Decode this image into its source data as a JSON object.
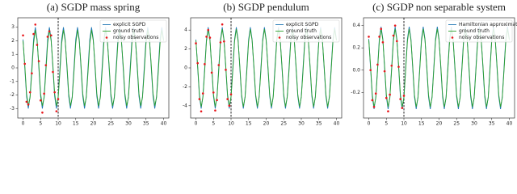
{
  "chart_data": [
    {
      "type": "line",
      "title": "(a) SGDP mass spring",
      "xlim": [
        -1.5,
        41.5
      ],
      "xticks": [
        0,
        5,
        10,
        15,
        20,
        25,
        30,
        35,
        40
      ],
      "ylim": [
        -3.7,
        3.7
      ],
      "yticks": [
        -3,
        -2,
        -1,
        0,
        1,
        2,
        3
      ],
      "vline": 10,
      "legend": "upper right",
      "x": [
        0,
        0.5,
        1,
        1.5,
        2,
        2.5,
        3,
        3.5,
        4,
        4.5,
        5,
        5.5,
        6,
        6.5,
        7,
        7.5,
        8,
        8.5,
        9,
        9.5,
        10,
        10.5,
        11,
        11.5,
        12,
        12.5,
        13,
        13.5,
        14,
        14.5,
        15,
        15.5,
        16,
        16.5,
        17,
        17.5,
        18,
        18.5,
        19,
        19.5,
        20,
        20.5,
        21,
        21.5,
        22,
        22.5,
        23,
        23.5,
        24,
        24.5,
        25,
        25.5,
        26,
        26.5,
        27,
        27.5,
        28,
        28.5,
        29,
        29.5,
        30,
        30.5,
        31,
        31.5,
        32,
        32.5,
        33,
        33.5,
        34,
        34.5,
        35,
        35.5,
        36,
        36.5,
        37,
        37.5,
        38,
        38.5,
        39,
        39.5,
        40
      ],
      "series": [
        {
          "name": "explicit SGPD",
          "color": "#1f77b4",
          "values": [
            2.1,
            0,
            -2.1,
            -3,
            -2.1,
            0,
            2.1,
            3,
            2.1,
            0,
            -2.1,
            -3,
            -2.1,
            0,
            2.1,
            3,
            2.1,
            0,
            -2.1,
            -3,
            -2.1,
            0,
            2.1,
            3,
            2.1,
            0,
            -2.1,
            -3,
            -2.1,
            0,
            2.1,
            3,
            2.1,
            0,
            -2.1,
            -3,
            -2.1,
            0,
            2.1,
            3,
            2.1,
            0,
            -2.1,
            -3,
            -2.1,
            0,
            2.1,
            3,
            2.1,
            0,
            -2.1,
            -3,
            -2.1,
            0,
            2.1,
            3,
            2.1,
            0,
            -2.1,
            -3,
            -2.1,
            0,
            2.1,
            3,
            2.1,
            0,
            -2.1,
            -3,
            -2.1,
            0,
            2.1,
            3,
            2.1,
            0,
            -2.1,
            -3,
            -2.1,
            0,
            2.1,
            3,
            2.1
          ]
        },
        {
          "name": "ground truth",
          "color": "#2ca02c",
          "values": [
            2.0,
            0.2,
            -1.9,
            -2.8,
            -2.2,
            -0.3,
            1.8,
            2.8,
            2.0,
            0.2,
            -1.9,
            -2.8,
            -2.2,
            -0.3,
            1.8,
            2.8,
            2.0,
            0.2,
            -1.9,
            -2.8,
            -2.2,
            -0.3,
            1.8,
            2.8,
            2.0,
            0.2,
            -1.9,
            -2.8,
            -2.2,
            -0.3,
            1.8,
            2.8,
            2.0,
            0.2,
            -1.9,
            -2.8,
            -2.2,
            -0.3,
            1.8,
            2.8,
            2.0,
            0.2,
            -1.9,
            -2.8,
            -2.2,
            -0.3,
            1.8,
            2.8,
            2.0,
            0.2,
            -1.9,
            -2.8,
            -2.2,
            -0.3,
            1.8,
            2.8,
            2.0,
            0.2,
            -1.9,
            -2.8,
            -2.2,
            -0.3,
            1.8,
            2.8,
            2.0,
            0.2,
            -1.9,
            -2.8,
            -2.2,
            -0.3,
            1.8,
            2.8,
            2.0,
            0.2,
            -1.9,
            -2.8,
            -2.2,
            -0.3,
            1.8,
            2.8,
            2.0
          ]
        },
        {
          "name": "noisy observations",
          "color": "#e8161b",
          "type": "scatter",
          "x": [
            0,
            0.5,
            1,
            1.5,
            2,
            2.5,
            3,
            3.5,
            4,
            4.5,
            5,
            5.5,
            6,
            6.5,
            7,
            7.5,
            8,
            8.5,
            9,
            9.5,
            10
          ],
          "values": [
            2.4,
            0.3,
            -2.5,
            -2.7,
            -1.8,
            -0.4,
            2.5,
            3.2,
            1.7,
            0.5,
            -2.4,
            -3.3,
            -1.9,
            0.2,
            2.3,
            2.7,
            2.4,
            -0.3,
            -1.8,
            -3.2,
            -2.3
          ]
        }
      ]
    },
    {
      "type": "line",
      "title": "(b) SGDP pendulum",
      "xlim": [
        -1.5,
        41.5
      ],
      "xticks": [
        0,
        5,
        10,
        15,
        20,
        25,
        30,
        35,
        40
      ],
      "ylim": [
        -5.3,
        5.3
      ],
      "yticks": [
        -4,
        -2,
        0,
        2,
        4
      ],
      "vline": 10,
      "legend": "upper right",
      "x": [
        0,
        0.5,
        1,
        1.5,
        2,
        2.5,
        3,
        3.5,
        4,
        4.5,
        5,
        5.5,
        6,
        6.5,
        7,
        7.5,
        8,
        8.5,
        9,
        9.5,
        10,
        10.5,
        11,
        11.5,
        12,
        12.5,
        13,
        13.5,
        14,
        14.5,
        15,
        15.5,
        16,
        16.5,
        17,
        17.5,
        18,
        18.5,
        19,
        19.5,
        20,
        20.5,
        21,
        21.5,
        22,
        22.5,
        23,
        23.5,
        24,
        24.5,
        25,
        25.5,
        26,
        26.5,
        27,
        27.5,
        28,
        28.5,
        29,
        29.5,
        30,
        30.5,
        31,
        31.5,
        32,
        32.5,
        33,
        33.5,
        34,
        34.5,
        35,
        35.5,
        36,
        36.5,
        37,
        37.5,
        38,
        38.5,
        39,
        39.5,
        40
      ],
      "series": [
        {
          "name": "explicit SGPD",
          "color": "#1f77b4",
          "values": [
            3,
            0,
            -3,
            -4.3,
            -3,
            0,
            3,
            4.3,
            3,
            0,
            -3,
            -4.3,
            -3,
            0,
            3,
            4.3,
            3,
            0,
            -3,
            -4.3,
            -3,
            0,
            3,
            4.3,
            3,
            0,
            -3,
            -4.3,
            -3,
            0,
            3,
            4.3,
            3,
            0,
            -3,
            -4.3,
            -3,
            0,
            3,
            4.3,
            3,
            0,
            -3,
            -4.3,
            -3,
            0,
            3,
            4.3,
            3,
            0,
            -3,
            -4.3,
            -3,
            0,
            3,
            4.3,
            3,
            0,
            -3,
            -4.3,
            -3,
            0,
            3,
            4.3,
            3,
            0,
            -3,
            -4.3,
            -3,
            0,
            3,
            4.3,
            3,
            0,
            -3,
            -4.3,
            -3,
            0,
            3,
            4.3,
            3
          ]
        },
        {
          "name": "ground truth",
          "color": "#2ca02c",
          "values": [
            2.9,
            0.2,
            -2.8,
            -4.1,
            -3.1,
            -0.3,
            2.8,
            4.1,
            2.9,
            0.2,
            -2.8,
            -4.1,
            -3.1,
            -0.3,
            2.8,
            4.1,
            2.9,
            0.2,
            -2.8,
            -4.1,
            -3.1,
            -0.3,
            2.8,
            4.1,
            2.9,
            0.2,
            -2.8,
            -4.1,
            -3.1,
            -0.3,
            2.8,
            4.1,
            2.9,
            0.2,
            -2.8,
            -4.1,
            -3.1,
            -0.3,
            2.8,
            4.1,
            2.9,
            0.2,
            -2.8,
            -4.1,
            -3.1,
            -0.3,
            2.8,
            4.1,
            2.9,
            0.2,
            -2.8,
            -4.1,
            -3.1,
            -0.3,
            2.8,
            4.1,
            2.9,
            0.2,
            -2.8,
            -4.1,
            -3.1,
            -0.3,
            2.8,
            4.1,
            2.9,
            0.2,
            -2.8,
            -4.1,
            -3.1,
            -0.3,
            2.8,
            4.1,
            2.9,
            0.2,
            -2.8,
            -4.1,
            -3.1,
            -0.3,
            2.8,
            4.1,
            2.9
          ]
        },
        {
          "name": "noisy observations",
          "color": "#e8161b",
          "type": "scatter",
          "x": [
            0,
            0.5,
            1,
            1.5,
            2,
            2.5,
            3,
            3.5,
            4,
            4.5,
            5,
            5.5,
            6,
            6.5,
            7,
            7.5,
            8,
            8.5,
            9,
            9.5,
            10
          ],
          "values": [
            2.6,
            0.5,
            -3.3,
            -4.6,
            -2.7,
            0.4,
            3.3,
            4.0,
            3.2,
            -0.5,
            -2.6,
            -4.5,
            -3.4,
            0.3,
            2.7,
            4.6,
            2.8,
            -0.2,
            -3.3,
            -4.0,
            -2.8
          ]
        }
      ]
    },
    {
      "type": "line",
      "title": "(c) SGDP non separable system",
      "xlim": [
        -1.5,
        41.5
      ],
      "xticks": [
        0,
        5,
        10,
        15,
        20,
        25,
        30,
        35,
        40
      ],
      "ylim": [
        -0.43,
        0.47
      ],
      "yticks": [
        -0.2,
        {
          "value": 0,
          "label": "0.0"
        },
        0.2,
        0.4
      ],
      "vline": 10,
      "legend": "upper right",
      "x": [
        0,
        0.5,
        1,
        1.5,
        2,
        2.5,
        3,
        3.5,
        4,
        4.5,
        5,
        5.5,
        6,
        6.5,
        7,
        7.5,
        8,
        8.5,
        9,
        9.5,
        10,
        10.5,
        11,
        11.5,
        12,
        12.5,
        13,
        13.5,
        14,
        14.5,
        15,
        15.5,
        16,
        16.5,
        17,
        17.5,
        18,
        18.5,
        19,
        19.5,
        20,
        20.5,
        21,
        21.5,
        22,
        22.5,
        23,
        23.5,
        24,
        24.5,
        25,
        25.5,
        26,
        26.5,
        27,
        27.5,
        28,
        28.5,
        29,
        29.5,
        30,
        30.5,
        31,
        31.5,
        32,
        32.5,
        33,
        33.5,
        34,
        34.5,
        35,
        35.5,
        36,
        36.5,
        37,
        37.5,
        38,
        38.5,
        39,
        39.5,
        40
      ],
      "series": [
        {
          "name": "Hamiltonian approximation",
          "color": "#1f77b4",
          "values": [
            0.28,
            0.02,
            -0.24,
            -0.35,
            -0.24,
            0.02,
            0.28,
            0.39,
            0.28,
            0.02,
            -0.24,
            -0.35,
            -0.24,
            0.02,
            0.28,
            0.39,
            0.28,
            0.02,
            -0.24,
            -0.35,
            -0.24,
            0.02,
            0.28,
            0.39,
            0.28,
            0.02,
            -0.24,
            -0.35,
            -0.24,
            0.02,
            0.28,
            0.39,
            0.28,
            0.02,
            -0.24,
            -0.35,
            -0.24,
            0.02,
            0.28,
            0.39,
            0.28,
            0.02,
            -0.24,
            -0.35,
            -0.24,
            0.02,
            0.28,
            0.39,
            0.28,
            0.02,
            -0.24,
            -0.35,
            -0.24,
            0.02,
            0.28,
            0.39,
            0.28,
            0.02,
            -0.24,
            -0.35,
            -0.24,
            0.02,
            0.28,
            0.39,
            0.28,
            0.02,
            -0.24,
            -0.35,
            -0.24,
            0.02,
            0.28,
            0.39,
            0.28,
            0.02,
            -0.24,
            -0.35,
            -0.24,
            0.02,
            0.28,
            0.39,
            0.28
          ]
        },
        {
          "name": "ground truth",
          "color": "#2ca02c",
          "values": [
            0.27,
            0.04,
            -0.22,
            -0.33,
            -0.25,
            0,
            0.26,
            0.37,
            0.27,
            0.04,
            -0.22,
            -0.33,
            -0.25,
            0,
            0.26,
            0.37,
            0.27,
            0.04,
            -0.22,
            -0.33,
            -0.25,
            0,
            0.26,
            0.37,
            0.27,
            0.04,
            -0.22,
            -0.33,
            -0.25,
            0,
            0.26,
            0.37,
            0.27,
            0.04,
            -0.22,
            -0.33,
            -0.25,
            0,
            0.26,
            0.37,
            0.27,
            0.04,
            -0.22,
            -0.33,
            -0.25,
            0,
            0.26,
            0.37,
            0.27,
            0.04,
            -0.22,
            -0.33,
            -0.25,
            0,
            0.26,
            0.37,
            0.27,
            0.04,
            -0.22,
            -0.33,
            -0.25,
            0,
            0.26,
            0.37,
            0.27,
            0.04,
            -0.22,
            -0.33,
            -0.25,
            0,
            0.26,
            0.37,
            0.27,
            0.04,
            -0.22,
            -0.33,
            -0.25,
            0,
            0.26,
            0.37,
            0.27
          ]
        },
        {
          "name": "noisy observations",
          "color": "#e8161b",
          "type": "scatter",
          "x": [
            0,
            0.5,
            1,
            1.5,
            2,
            2.5,
            3,
            3.5,
            4,
            4.5,
            5,
            5.5,
            6,
            6.5,
            7,
            7.5,
            8,
            8.5,
            9,
            9.5,
            10
          ],
          "values": [
            0.3,
            0,
            -0.27,
            -0.33,
            -0.21,
            0.05,
            0.3,
            0.37,
            0.25,
            -0.01,
            -0.25,
            -0.37,
            -0.22,
            0.04,
            0.31,
            0.4,
            0.26,
            0.03,
            -0.26,
            -0.34,
            -0.23
          ]
        }
      ]
    }
  ]
}
